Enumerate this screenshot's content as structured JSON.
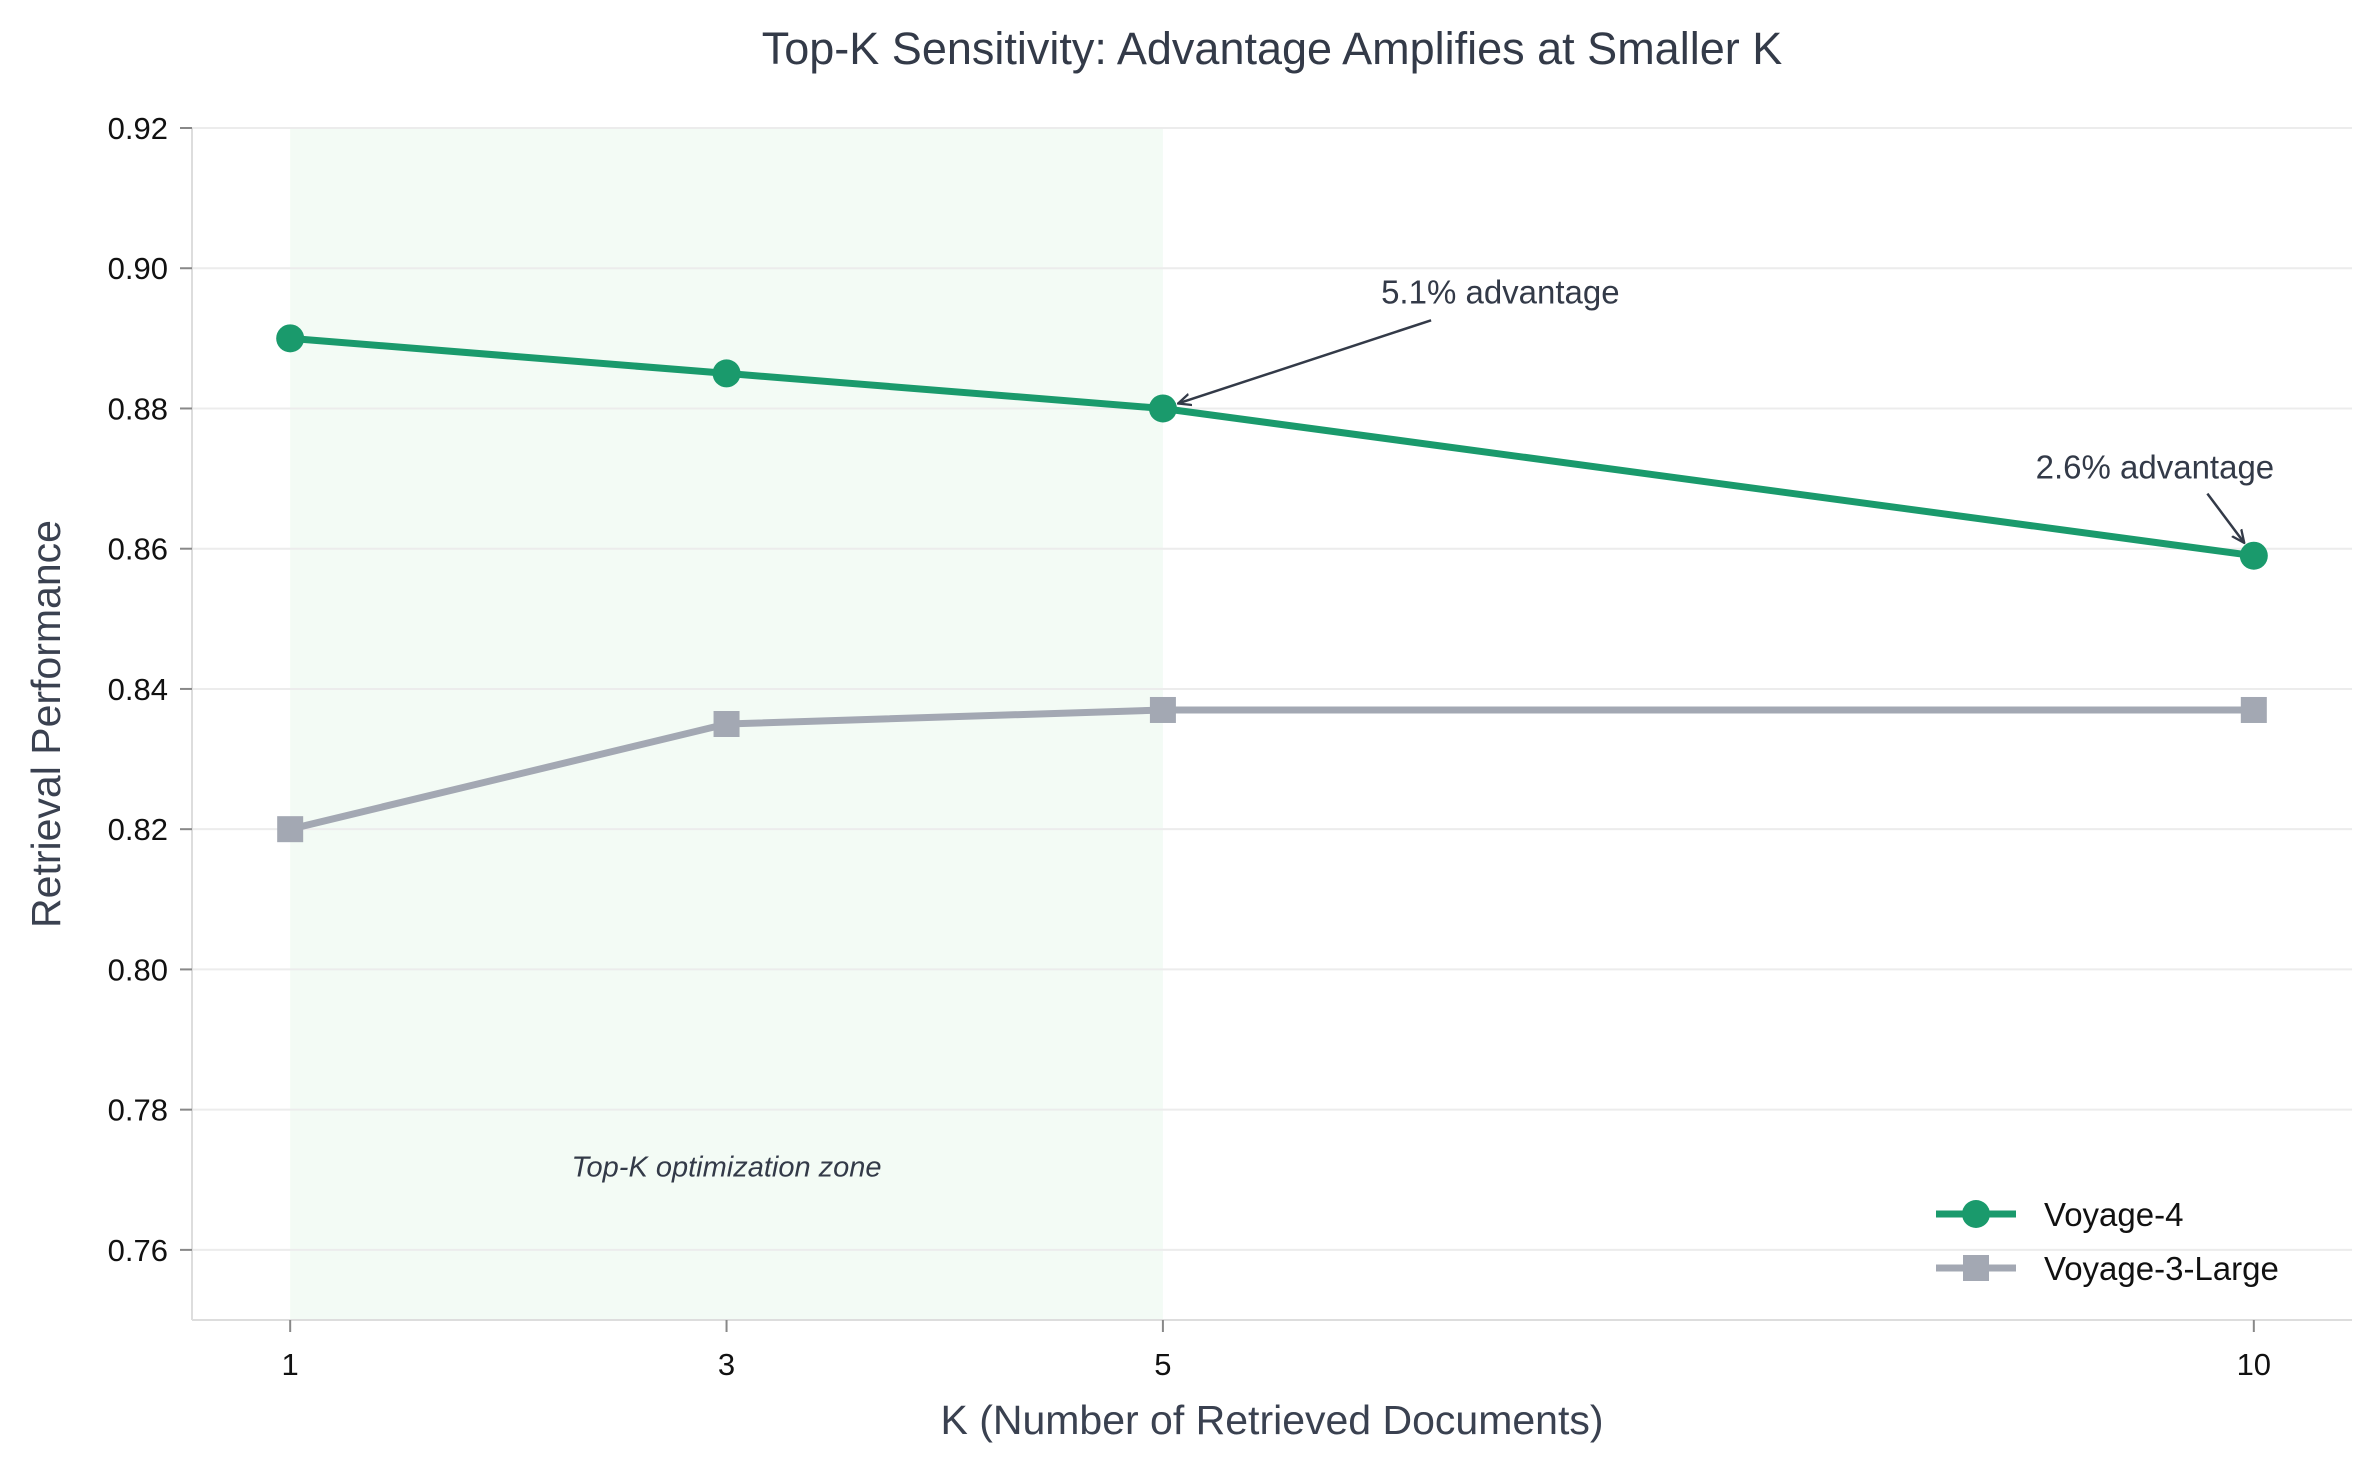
{
  "chart_data": {
    "type": "line",
    "title": "Top-K Sensitivity: Advantage Amplifies at Smaller K",
    "xlabel": "K (Number of Retrieved Documents)",
    "ylabel": "Retrieval Performance",
    "x": [
      1,
      3,
      5,
      10
    ],
    "x_ticks": [
      "1",
      "3",
      "5",
      "10"
    ],
    "xlim": [
      0.55,
      10.45
    ],
    "ylim": [
      0.75,
      0.92
    ],
    "y_ticks": [
      0.76,
      0.78,
      0.8,
      0.82,
      0.84,
      0.86,
      0.88,
      0.9,
      0.92
    ],
    "y_tick_labels": [
      "0.76",
      "0.78",
      "0.80",
      "0.82",
      "0.84",
      "0.86",
      "0.88",
      "0.90",
      "0.92"
    ],
    "grid": "horizontal",
    "legend_position": "bottom-right",
    "series": [
      {
        "name": "Voyage-4",
        "values": [
          0.89,
          0.885,
          0.88,
          0.859
        ],
        "color": "#1a9a6c",
        "marker": "circle"
      },
      {
        "name": "Voyage-3-Large",
        "values": [
          0.82,
          0.835,
          0.837,
          0.837
        ],
        "color": "#a3a8b3",
        "marker": "square"
      }
    ],
    "shaded_region": {
      "x_range": [
        1,
        5
      ],
      "label": "Top-K optimization zone",
      "color": "#f3fbf5"
    },
    "annotations": [
      {
        "text": "5.1% advantage",
        "point_x": 5,
        "point_y": 0.88,
        "text_x": 6.0,
        "text_y": 0.895
      },
      {
        "text": "2.6% advantage",
        "point_x": 10,
        "point_y": 0.859,
        "text_x": 9.0,
        "text_y": 0.87
      }
    ]
  }
}
